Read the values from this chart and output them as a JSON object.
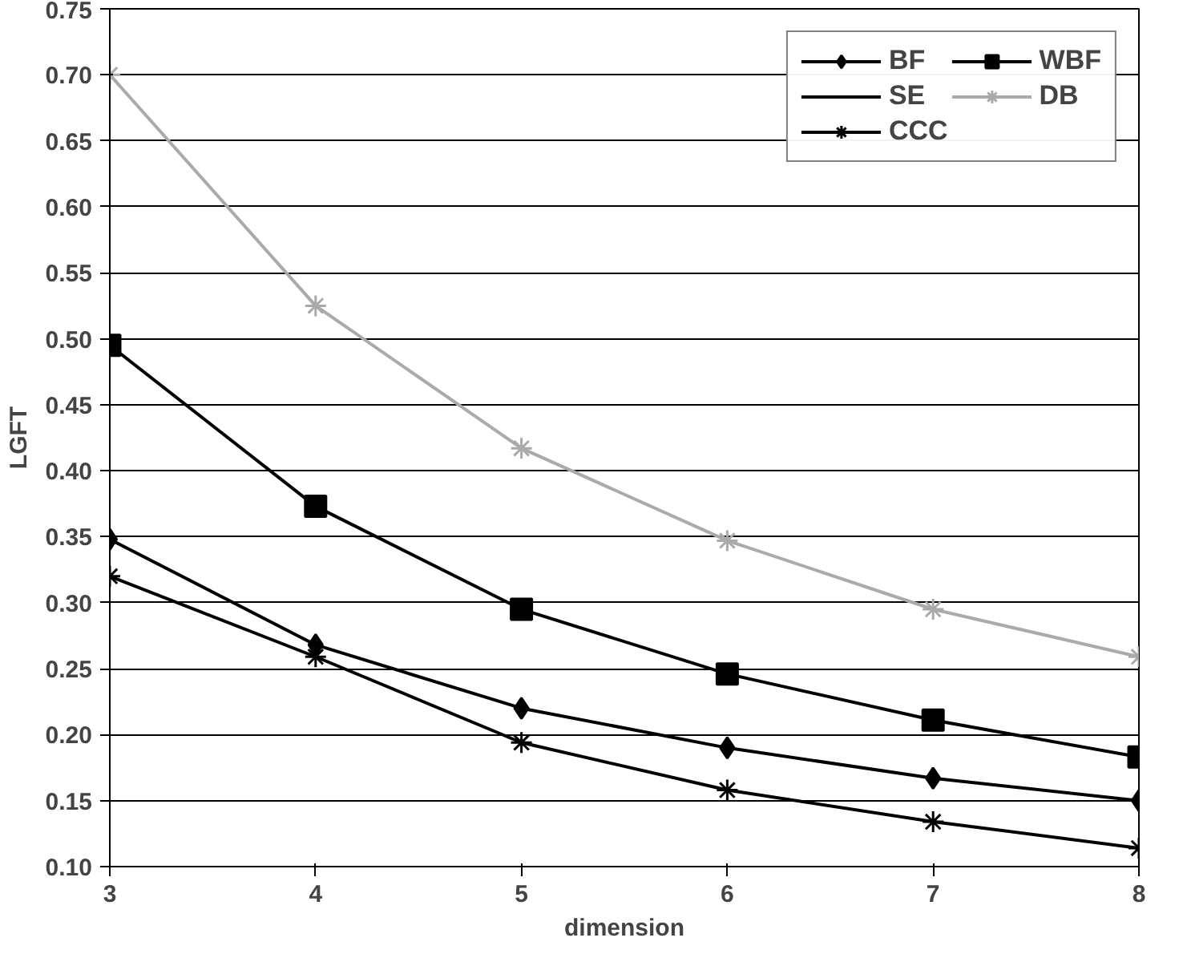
{
  "chart_data": {
    "type": "line",
    "xlabel": "dimension",
    "ylabel": "LGFT",
    "x": [
      3,
      4,
      5,
      6,
      7,
      8
    ],
    "series": [
      {
        "name": "BF",
        "color": "#000000",
        "marker": "diamond",
        "values": [
          0.348,
          0.268,
          0.22,
          0.19,
          0.167,
          0.15
        ]
      },
      {
        "name": "WBF",
        "color": "#000000",
        "marker": "square",
        "values": [
          0.495,
          0.373,
          0.295,
          0.246,
          0.211,
          0.183
        ]
      },
      {
        "name": "SE",
        "marker": "none",
        "values": [
          null,
          null,
          null,
          null,
          null,
          null
        ]
      },
      {
        "name": "DB",
        "color": "#aaaaaa",
        "marker": "cross",
        "values": [
          0.7,
          0.525,
          0.417,
          0.347,
          0.295,
          0.259
        ]
      },
      {
        "name": "CCC",
        "color": "#000000",
        "marker": "cross",
        "values": [
          0.32,
          0.259,
          0.194,
          0.158,
          0.134,
          0.114
        ]
      }
    ],
    "xlim": [
      3,
      8
    ],
    "xticks": [
      3,
      4,
      5,
      6,
      7,
      8
    ],
    "ylim": [
      0.1,
      0.75
    ],
    "yticks": [
      {
        "value": 0.1,
        "label": "0.10"
      },
      {
        "value": 0.15,
        "label": "0.15"
      },
      {
        "value": 0.2,
        "label": "0.20"
      },
      {
        "value": 0.25,
        "label": "0.25"
      },
      {
        "value": 0.3,
        "label": "0.30"
      },
      {
        "value": 0.35,
        "label": "0.35"
      },
      {
        "value": 0.4,
        "label": "0.40"
      },
      {
        "value": 0.45,
        "label": "0.45"
      },
      {
        "value": 0.5,
        "label": "0.50"
      },
      {
        "value": 0.55,
        "label": "0.55"
      },
      {
        "value": 0.6,
        "label": "0.60"
      },
      {
        "value": 0.65,
        "label": "0.65"
      },
      {
        "value": 0.7,
        "label": "0.70"
      },
      {
        "value": 0.75,
        "label": "0.75"
      }
    ],
    "grid": "y",
    "legend": "top right",
    "line_style": "solid"
  }
}
